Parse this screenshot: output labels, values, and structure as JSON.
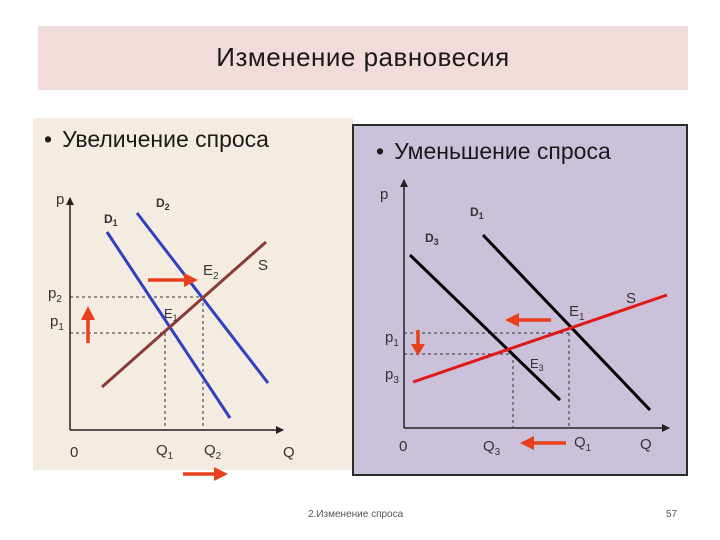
{
  "title": "Изменение  равновесия",
  "left": {
    "heading": "Увеличение спроса",
    "labels": {
      "p": "p",
      "d1": "D",
      "d1_sub": "1",
      "d2": "D",
      "d2_sub": "2",
      "e2": "E",
      "e2_sub": "2",
      "s": "S",
      "p2": "p",
      "p2_sub": "2",
      "p1": "p",
      "p1_sub": "1",
      "e1": "E",
      "e1_sub": "1",
      "origin": "0",
      "q1": "Q",
      "q1_sub": "1",
      "q2": "Q",
      "q2_sub": "2",
      "q": "Q"
    }
  },
  "right": {
    "heading": "Уменьшение спроса",
    "labels": {
      "p": "p",
      "d1": "D",
      "d1_sub": "1",
      "d3": "D",
      "d3_sub": "3",
      "e1": "E",
      "e1_sub": "1",
      "s": "S",
      "p1": "p",
      "p1_sub": "1",
      "p3": "p",
      "p3_sub": "3",
      "e3": "E",
      "e3_sub": "3",
      "origin": "0",
      "q3": "Q",
      "q3_sub": "3",
      "q1": "Q",
      "q1_sub": "1",
      "q": "Q"
    }
  },
  "footer": "2.Изменение спроса",
  "page_number": "57",
  "colors": {
    "title_band": "#f2dcdb",
    "left_panel": "#f5ece1",
    "right_panel": "#ccc1da",
    "demand_left": "#3040c0",
    "supply_left": "#8b3a3a",
    "demand_right": "#000000",
    "supply_right": "#e01818",
    "arrow": "#e8401c"
  },
  "icons": [
    "arrow-right-icon",
    "arrow-up-icon",
    "arrow-left-icon",
    "arrow-down-icon",
    "bullet-icon"
  ]
}
